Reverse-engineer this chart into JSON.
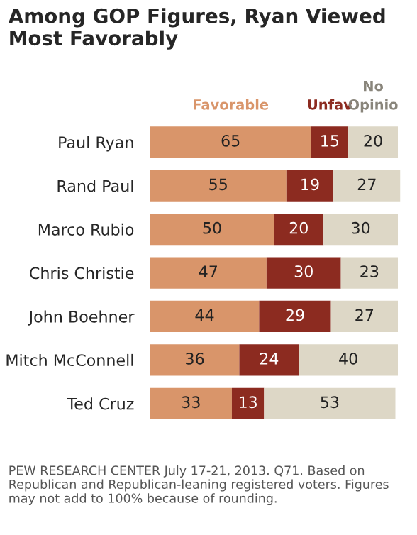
{
  "chart_data": {
    "type": "bar",
    "orientation": "horizontal",
    "stacked": true,
    "data_labels": true,
    "legend": "top",
    "grid": false,
    "title": "Among GOP Figures, Ryan Viewed Most Favorably",
    "categories": [
      "Paul Ryan",
      "Rand Paul",
      "Marco Rubio",
      "Chris Christie",
      "John Boehner",
      "Mitch McConnell",
      "Ted Cruz"
    ],
    "series": [
      {
        "name": "Favorable",
        "color": "#d9956a",
        "values": [
          65,
          55,
          50,
          47,
          44,
          36,
          33
        ]
      },
      {
        "name": "Unfav",
        "color": "#8c2b20",
        "values": [
          15,
          19,
          20,
          30,
          29,
          24,
          13
        ]
      },
      {
        "name": "No Opinio",
        "color": "#ddd7c6",
        "values": [
          20,
          27,
          30,
          23,
          27,
          40,
          53
        ]
      }
    ],
    "annotations": [
      "PEW RESEARCH CENTER July 17-21, 2013. Q71. Based on Republican and Republican-leaning registered voters. Figures may not add to 100% because of rounding."
    ]
  }
}
